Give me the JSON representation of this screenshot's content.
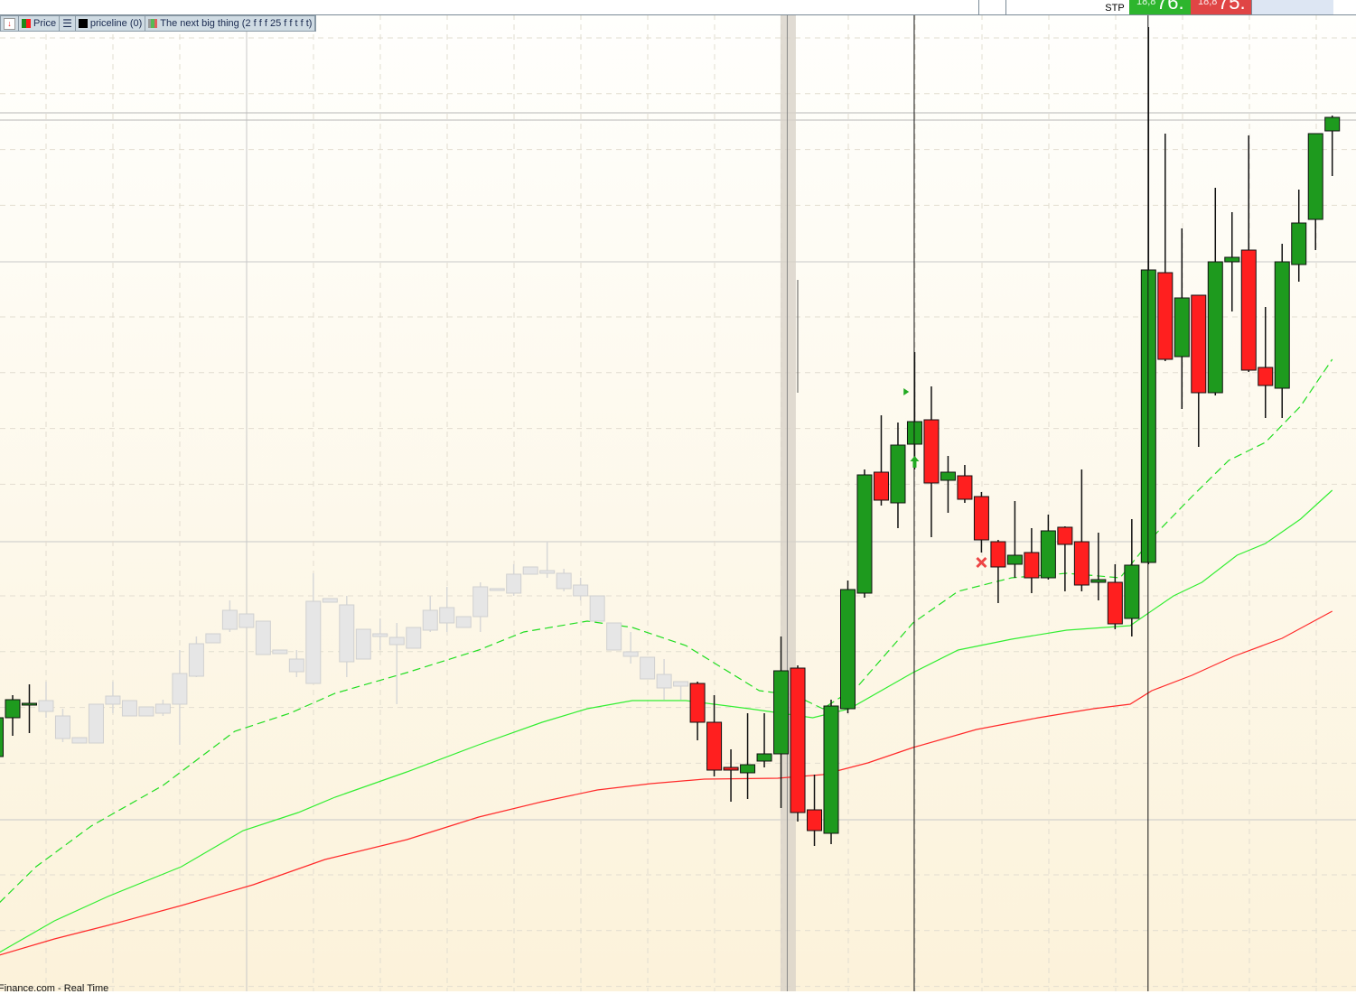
{
  "header": {
    "order_type": "STP",
    "bid": {
      "prefix": "18,8",
      "value": "76.",
      "color": "#2db52d"
    },
    "ask": {
      "prefix": "18,8",
      "value": "75.",
      "color": "#e04545"
    }
  },
  "legend": {
    "items": [
      {
        "label": "Price",
        "icon": "price-swatch-icon",
        "colors": [
          "#1a8a1a",
          "#ff1a1a"
        ]
      },
      {
        "label": "priceline (0)",
        "icon": "black-swatch-icon",
        "colors": [
          "#000000"
        ]
      },
      {
        "label": "The next big thing (2 f f f 25 f f t f t)",
        "icon": "multi-swatch-icon",
        "colors": [
          "#55bb55",
          "#e06060"
        ]
      }
    ]
  },
  "footer": {
    "source": "Finance.com - Real Time"
  },
  "chart_data": {
    "type": "candlestick",
    "colors": {
      "up": "#1e9a1e",
      "down": "#ff1f1f",
      "faded": "#e6e6e6",
      "ma_fast": "#22dd22",
      "ma_mid": "#33ee33",
      "ma_slow": "#ff2a2a"
    },
    "grid": true,
    "faded_range": [
      3,
      41
    ],
    "candles_ohlc": [
      [
        26.2,
        31.0,
        26.0,
        30.5
      ],
      [
        30.5,
        33.0,
        28.5,
        32.5
      ],
      [
        31.9,
        34.2,
        28.8,
        32.1
      ],
      [
        31.2,
        34.5,
        30.5,
        32.4
      ],
      [
        28.2,
        31.5,
        27.8,
        30.7
      ],
      [
        27.7,
        28.3,
        27.7,
        28.3
      ],
      [
        27.7,
        32.0,
        27.7,
        32.0
      ],
      [
        32.0,
        34.5,
        31.0,
        32.9
      ],
      [
        30.7,
        32.4,
        30.7,
        32.4
      ],
      [
        30.7,
        31.7,
        30.7,
        31.7
      ],
      [
        31.0,
        32.5,
        30.7,
        32.0
      ],
      [
        32.0,
        38.0,
        27.5,
        35.4
      ],
      [
        35.1,
        39.5,
        35.0,
        38.7
      ],
      [
        38.8,
        39.8,
        38.8,
        39.8
      ],
      [
        40.3,
        43.5,
        40.0,
        42.4
      ],
      [
        40.5,
        42.0,
        40.5,
        42.0
      ],
      [
        37.5,
        41.2,
        37.5,
        41.2
      ],
      [
        37.6,
        38.0,
        37.6,
        38.0
      ],
      [
        35.6,
        38.0,
        35.0,
        37.0
      ],
      [
        34.3,
        46.5,
        34.3,
        43.4
      ],
      [
        43.3,
        43.7,
        43.3,
        43.7
      ],
      [
        36.7,
        44.0,
        35.0,
        43.0
      ],
      [
        37.0,
        40.3,
        37.0,
        40.3
      ],
      [
        39.5,
        41.5,
        38.0,
        39.8
      ],
      [
        38.6,
        41.0,
        32.0,
        39.4
      ],
      [
        38.2,
        40.5,
        38.2,
        40.5
      ],
      [
        40.2,
        44.0,
        40.0,
        42.4
      ],
      [
        41.0,
        45.0,
        40.0,
        42.7
      ],
      [
        40.5,
        41.7,
        40.5,
        41.7
      ],
      [
        41.7,
        45.5,
        40.0,
        45.0
      ],
      [
        44.6,
        44.8,
        44.6,
        44.8
      ],
      [
        44.3,
        47.5,
        44.0,
        46.4
      ],
      [
        46.4,
        47.2,
        46.4,
        47.2
      ],
      [
        46.5,
        50.0,
        46.0,
        46.8
      ],
      [
        44.8,
        47.0,
        44.5,
        46.5
      ],
      [
        44.0,
        46.0,
        43.5,
        45.2
      ],
      [
        41.2,
        44.0,
        41.2,
        44.0
      ],
      [
        38.0,
        41.0,
        38.0,
        41.0
      ],
      [
        37.3,
        40.0,
        36.5,
        37.8
      ],
      [
        34.8,
        37.2,
        34.8,
        37.2
      ],
      [
        33.8,
        37.0,
        32.5,
        35.3
      ],
      [
        34.0,
        34.5,
        32.5,
        34.5
      ],
      [
        34.3,
        34.5,
        28.0,
        30.0
      ],
      [
        30.0,
        33.0,
        24.0,
        24.7
      ],
      [
        25.0,
        27.0,
        21.2,
        24.7
      ],
      [
        24.4,
        31.0,
        21.5,
        25.3
      ],
      [
        25.7,
        31.0,
        25.0,
        26.5
      ],
      [
        26.5,
        39.5,
        20.5,
        35.7
      ],
      [
        36.0,
        36.3,
        19.0,
        20.0
      ],
      [
        20.3,
        24.2,
        16.3,
        18.0
      ],
      [
        17.7,
        32.5,
        16.5,
        31.8
      ],
      [
        31.5,
        45.7,
        31.0,
        44.7
      ],
      [
        44.3,
        58.0,
        43.8,
        57.4
      ],
      [
        57.7,
        64.0,
        54.0,
        54.6
      ],
      [
        54.3,
        63.2,
        51.5,
        60.7
      ],
      [
        60.8,
        71.0,
        58.0,
        63.3
      ],
      [
        63.5,
        67.2,
        50.5,
        56.5
      ],
      [
        56.8,
        59.5,
        53.2,
        57.7
      ],
      [
        57.3,
        58.5,
        54.3,
        54.7
      ],
      [
        55.0,
        55.5,
        48.8,
        50.2
      ],
      [
        50.0,
        50.2,
        43.2,
        47.2
      ],
      [
        47.5,
        54.5,
        46.0,
        48.5
      ],
      [
        48.8,
        51.5,
        44.3,
        46.0
      ],
      [
        46.0,
        53.0,
        45.8,
        51.2
      ],
      [
        51.6,
        51.7,
        44.5,
        49.7
      ],
      [
        50.0,
        58.0,
        44.5,
        45.2
      ],
      [
        45.5,
        51.0,
        43.5,
        45.8
      ],
      [
        45.5,
        47.5,
        40.3,
        40.9
      ],
      [
        41.5,
        52.5,
        39.5,
        47.4
      ],
      [
        47.7,
        107.0,
        47.5,
        80.1
      ],
      [
        79.8,
        95.2,
        70.0,
        70.2
      ],
      [
        70.5,
        84.7,
        64.7,
        77.0
      ],
      [
        77.3,
        77.3,
        60.5,
        66.5
      ],
      [
        66.5,
        89.2,
        66.2,
        81.0
      ],
      [
        81.0,
        86.5,
        75.5,
        81.5
      ],
      [
        82.3,
        95.0,
        68.8,
        69.0
      ],
      [
        69.3,
        76.0,
        63.7,
        67.3
      ],
      [
        67.0,
        83.0,
        63.7,
        81.0
      ],
      [
        80.7,
        89.0,
        78.8,
        85.3
      ],
      [
        85.7,
        95.2,
        82.3,
        95.2
      ],
      [
        95.5,
        97.2,
        90.5,
        97.0
      ]
    ],
    "moving_averages": [
      {
        "style": "dashed",
        "color": "#22dd22",
        "points": [
          [
            0.2,
            10
          ],
          [
            2.4,
            14
          ],
          [
            5.7,
            18.5
          ],
          [
            10,
            23
          ],
          [
            14.3,
            29
          ],
          [
            17.6,
            31
          ],
          [
            20.3,
            33.2
          ],
          [
            24.6,
            35.5
          ],
          [
            28.9,
            38
          ],
          [
            31.6,
            40
          ],
          [
            35.4,
            41.2
          ],
          [
            38.1,
            40.5
          ],
          [
            41.3,
            38.5
          ],
          [
            43.5,
            36
          ],
          [
            45.7,
            33.5
          ],
          [
            47.8,
            33
          ],
          [
            49.5,
            31.5
          ],
          [
            51.6,
            34
          ],
          [
            54.9,
            41
          ],
          [
            57.6,
            44.5
          ],
          [
            60.8,
            46
          ],
          [
            64.1,
            46.5
          ],
          [
            67.3,
            46
          ],
          [
            69.5,
            51
          ],
          [
            71.6,
            55
          ],
          [
            73.8,
            59
          ],
          [
            76,
            61
          ],
          [
            78.1,
            65
          ],
          [
            80,
            70.2
          ]
        ]
      },
      {
        "style": "solid",
        "color": "#33ee33",
        "points": [
          [
            0.2,
            4.5
          ],
          [
            3.5,
            8
          ],
          [
            6.7,
            10.7
          ],
          [
            11.1,
            14
          ],
          [
            14.8,
            18
          ],
          [
            18.1,
            20
          ],
          [
            20.3,
            21.7
          ],
          [
            24.6,
            24.5
          ],
          [
            28.9,
            27.5
          ],
          [
            32.7,
            30
          ],
          [
            35.4,
            31.5
          ],
          [
            38.1,
            32.4
          ],
          [
            41.3,
            32.4
          ],
          [
            45.1,
            31.5
          ],
          [
            48.9,
            30.5
          ],
          [
            51.1,
            31.5
          ],
          [
            54.9,
            35.5
          ],
          [
            57.6,
            38
          ],
          [
            60.8,
            39.2
          ],
          [
            64.1,
            40.2
          ],
          [
            67.9,
            40.7
          ],
          [
            70.5,
            44
          ],
          [
            72.2,
            45.5
          ],
          [
            74.3,
            48.5
          ],
          [
            76,
            49.8
          ],
          [
            78.1,
            52.5
          ],
          [
            80,
            55.7
          ]
        ]
      },
      {
        "style": "solid",
        "color": "#ff2a2a",
        "points": [
          [
            0.2,
            4.2
          ],
          [
            3.5,
            6
          ],
          [
            6.7,
            7.5
          ],
          [
            11.1,
            9.7
          ],
          [
            15.4,
            12
          ],
          [
            19.7,
            14.8
          ],
          [
            24.6,
            17
          ],
          [
            28.9,
            19.5
          ],
          [
            32.7,
            21.2
          ],
          [
            36,
            22.5
          ],
          [
            39.2,
            23.2
          ],
          [
            42.4,
            23.7
          ],
          [
            46.8,
            23.8
          ],
          [
            49.5,
            24.2
          ],
          [
            52.2,
            25.5
          ],
          [
            54.9,
            27.2
          ],
          [
            58.7,
            29.2
          ],
          [
            62.4,
            30.5
          ],
          [
            65.7,
            31.5
          ],
          [
            67.9,
            32
          ],
          [
            69.2,
            33.5
          ],
          [
            71.6,
            35.2
          ],
          [
            74.1,
            37.3
          ],
          [
            77,
            39.3
          ],
          [
            80,
            42.3
          ]
        ]
      }
    ],
    "signals": [
      {
        "type": "triangle-right",
        "index": 54.5,
        "price": 66.6,
        "color": "#22aa22"
      },
      {
        "type": "arrow-up",
        "index": 55,
        "price": 58.8,
        "color": "#22aa22"
      },
      {
        "type": "cross",
        "index": 59,
        "price": 47.7,
        "color": "#ee4444"
      }
    ],
    "cursor_lines_index": [
      55,
      69
    ],
    "highlight_band_index": 47.4,
    "price_lines": [
      97.5,
      96.7
    ]
  }
}
